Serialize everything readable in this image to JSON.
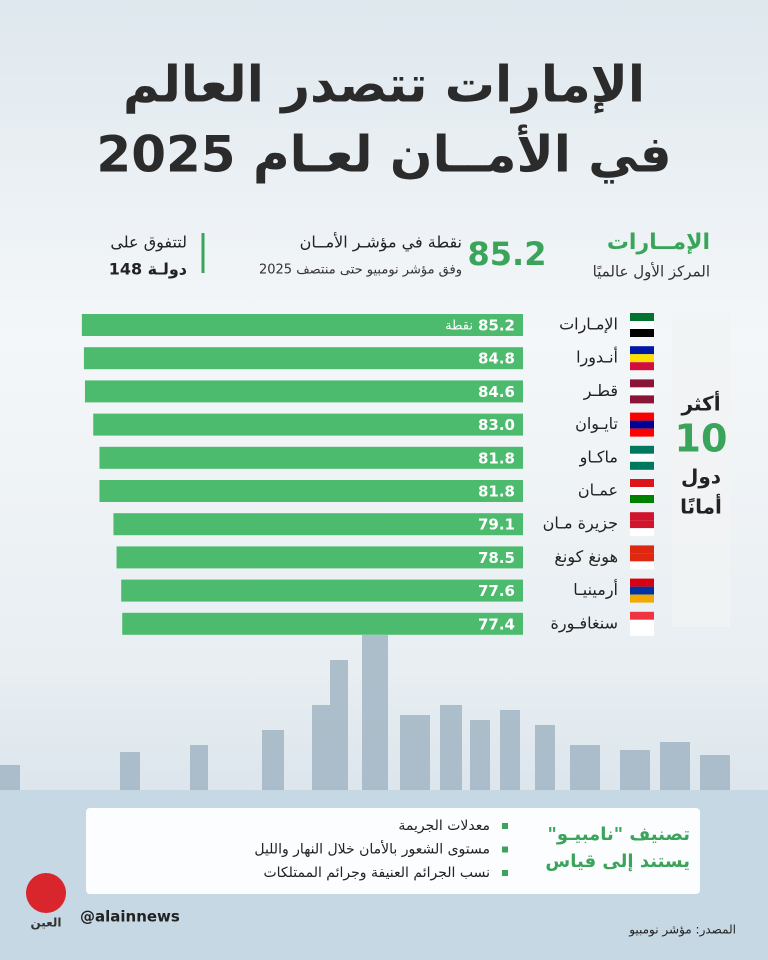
{
  "header": {
    "title_line1": "الإمارات تتصدر العالم",
    "title_line2": "في الأمــان لعـام 2025"
  },
  "highlight": {
    "country": "الإمــارات",
    "rank": "المركز الأول عالميًا",
    "score": "85.2",
    "score_text": "نقطة في مؤشـر الأمــان",
    "score_source": "وفق مؤشر نومبيو حتى منتصف 2025",
    "outperform_line1": "لتتفوق على",
    "outperform_line2": "148 دولـة"
  },
  "side_panel": {
    "line1": "أكثر",
    "line2": "10",
    "line3": "دول",
    "line4": "أمانًا"
  },
  "chart_data": {
    "type": "bar",
    "orientation": "horizontal",
    "categories": [
      "الإمـارات",
      "أنـدورا",
      "قطـر",
      "تايـوان",
      "ماكـاو",
      "عمـان",
      "جزيرة مـان",
      "هونغ كونغ",
      "أرمينيـا",
      "سنغافـورة"
    ],
    "values": [
      85.2,
      84.8,
      84.6,
      83.0,
      81.8,
      81.8,
      79.1,
      78.5,
      77.6,
      77.4
    ],
    "value_labels": [
      "85.2",
      "84.8",
      "84.6",
      "83.0",
      "81.8",
      "81.8",
      "79.1",
      "78.5",
      "77.6",
      "77.4"
    ],
    "unit_label": "نقطة",
    "color": "#4dbb6e",
    "xlim": [
      0,
      90
    ]
  },
  "info_box": {
    "heading_line1": "تصنيف \"نامبيـو\"",
    "heading_line2": "يستند إلى قياس",
    "bullets": [
      "معدلات الجريمة",
      "مستوى الشعور بالأمان خلال النهار والليل",
      "نسب الجرائم العنيفة وجرائم الممتلكات"
    ]
  },
  "footer": {
    "logo": "العين",
    "handle": "@alainnews",
    "source": "المصدر: مؤشر نومبيو"
  }
}
